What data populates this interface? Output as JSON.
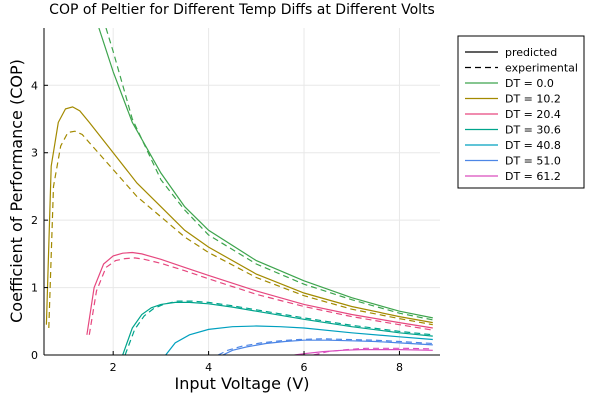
{
  "chart_data": {
    "type": "line",
    "title": "COP of Peltier for Different Temp Diffs at Different Volts",
    "xlabel": "Input Voltage (V)",
    "ylabel": "Coefficient of Performance (COP)",
    "xlim": [
      0.55,
      8.85
    ],
    "ylim": [
      0,
      4.85
    ],
    "xticks": [
      2,
      4,
      6,
      8
    ],
    "yticks": [
      0,
      1,
      2,
      3,
      4
    ],
    "grid": true,
    "legend_position": "top-right outside",
    "legend_entries": [
      {
        "name": "predicted",
        "color": "#000000",
        "style": "solid",
        "bind": "chart_data.legend_entries.0.name"
      },
      {
        "name": "experimental",
        "color": "#000000",
        "style": "dashed",
        "bind": "chart_data.legend_entries.1.name"
      },
      {
        "name": "DT = 0.0",
        "color": "#3da44d",
        "style": "solid",
        "bind": "chart_data.legend_entries.2.name"
      },
      {
        "name": "DT = 10.2",
        "color": "#a38a00",
        "style": "solid",
        "bind": "chart_data.legend_entries.3.name"
      },
      {
        "name": "DT = 20.4",
        "color": "#e6487f",
        "style": "solid",
        "bind": "chart_data.legend_entries.4.name"
      },
      {
        "name": "DT = 30.6",
        "color": "#00a48c",
        "style": "solid",
        "bind": "chart_data.legend_entries.5.name"
      },
      {
        "name": "DT = 40.8",
        "color": "#00a0bf",
        "style": "solid",
        "bind": "chart_data.legend_entries.6.name"
      },
      {
        "name": "DT = 51.0",
        "color": "#4d86e6",
        "style": "solid",
        "bind": "chart_data.legend_entries.7.name"
      },
      {
        "name": "DT = 61.2",
        "color": "#d94dbe",
        "style": "solid",
        "bind": "chart_data.legend_entries.8.name"
      }
    ],
    "series": [
      {
        "name": "DT = 0.0",
        "kind": "predicted",
        "color": "#3da44d",
        "x": [
          1.7,
          2.0,
          2.4,
          3.0,
          3.5,
          4.0,
          5.0,
          6.0,
          7.0,
          8.0,
          8.7
        ],
        "y": [
          4.85,
          4.2,
          3.45,
          2.7,
          2.2,
          1.85,
          1.4,
          1.1,
          0.85,
          0.65,
          0.55
        ]
      },
      {
        "name": "DT = 0.0",
        "kind": "experimental",
        "color": "#3da44d",
        "x": [
          1.85,
          2.0,
          2.4,
          3.0,
          3.5,
          4.0,
          5.0,
          6.0,
          7.0,
          8.0,
          8.7
        ],
        "y": [
          4.85,
          4.5,
          3.5,
          2.6,
          2.15,
          1.78,
          1.35,
          1.05,
          0.82,
          0.62,
          0.52
        ]
      },
      {
        "name": "DT = 10.2",
        "kind": "predicted",
        "color": "#a38a00",
        "x": [
          0.6,
          0.7,
          0.85,
          1.0,
          1.15,
          1.3,
          1.5,
          2.0,
          2.5,
          3.0,
          3.5,
          4.0,
          5.0,
          6.0,
          7.0,
          8.0,
          8.7
        ],
        "y": [
          0.45,
          2.8,
          3.45,
          3.65,
          3.68,
          3.62,
          3.45,
          3.0,
          2.55,
          2.2,
          1.85,
          1.6,
          1.2,
          0.92,
          0.72,
          0.57,
          0.48
        ]
      },
      {
        "name": "DT = 10.2",
        "kind": "experimental",
        "color": "#a38a00",
        "x": [
          0.65,
          0.75,
          0.9,
          1.05,
          1.2,
          1.35,
          1.5,
          2.0,
          2.5,
          3.0,
          3.5,
          4.0,
          5.0,
          6.0,
          7.0,
          8.0,
          8.7
        ],
        "y": [
          0.4,
          2.5,
          3.1,
          3.3,
          3.32,
          3.27,
          3.15,
          2.75,
          2.35,
          2.05,
          1.75,
          1.52,
          1.15,
          0.88,
          0.68,
          0.54,
          0.45
        ]
      },
      {
        "name": "DT = 20.4",
        "kind": "predicted",
        "color": "#e6487f",
        "x": [
          1.45,
          1.6,
          1.8,
          2.0,
          2.2,
          2.4,
          2.6,
          3.0,
          3.5,
          4.0,
          5.0,
          6.0,
          7.0,
          8.0,
          8.7
        ],
        "y": [
          0.3,
          1.0,
          1.35,
          1.47,
          1.51,
          1.52,
          1.5,
          1.42,
          1.3,
          1.18,
          0.95,
          0.75,
          0.6,
          0.48,
          0.4
        ]
      },
      {
        "name": "DT = 20.4",
        "kind": "experimental",
        "color": "#e6487f",
        "x": [
          1.5,
          1.65,
          1.85,
          2.05,
          2.25,
          2.45,
          2.65,
          3.0,
          3.5,
          4.0,
          5.0,
          6.0,
          7.0,
          8.0,
          8.7
        ],
        "y": [
          0.3,
          0.95,
          1.3,
          1.4,
          1.43,
          1.44,
          1.42,
          1.36,
          1.25,
          1.13,
          0.9,
          0.72,
          0.57,
          0.45,
          0.37
        ]
      },
      {
        "name": "DT = 30.6",
        "kind": "predicted",
        "color": "#00a48c",
        "x": [
          2.2,
          2.4,
          2.6,
          2.8,
          3.0,
          3.3,
          3.6,
          4.0,
          4.5,
          5.0,
          6.0,
          7.0,
          8.0,
          8.7
        ],
        "y": [
          0.0,
          0.4,
          0.6,
          0.7,
          0.75,
          0.78,
          0.78,
          0.76,
          0.71,
          0.65,
          0.53,
          0.42,
          0.33,
          0.28
        ]
      },
      {
        "name": "DT = 30.6",
        "kind": "experimental",
        "color": "#00a48c",
        "x": [
          2.25,
          2.45,
          2.65,
          2.85,
          3.05,
          3.35,
          3.65,
          4.0,
          4.5,
          5.0,
          6.0,
          7.0,
          8.0,
          8.7
        ],
        "y": [
          0.0,
          0.38,
          0.58,
          0.69,
          0.75,
          0.8,
          0.8,
          0.78,
          0.73,
          0.67,
          0.55,
          0.44,
          0.35,
          0.3
        ]
      },
      {
        "name": "DT = 40.8",
        "kind": "predicted",
        "color": "#00a0bf",
        "x": [
          3.1,
          3.3,
          3.6,
          4.0,
          4.5,
          5.0,
          5.5,
          6.0,
          7.0,
          8.0,
          8.7
        ],
        "y": [
          0.0,
          0.18,
          0.3,
          0.38,
          0.42,
          0.43,
          0.42,
          0.4,
          0.33,
          0.27,
          0.23
        ]
      },
      {
        "name": "DT = 51.0",
        "kind": "predicted",
        "color": "#4d86e6",
        "x": [
          4.3,
          4.5,
          4.8,
          5.2,
          5.6,
          6.0,
          6.5,
          7.0,
          7.5,
          8.0,
          8.7
        ],
        "y": [
          0.0,
          0.07,
          0.12,
          0.17,
          0.2,
          0.22,
          0.22,
          0.21,
          0.2,
          0.18,
          0.15
        ]
      },
      {
        "name": "DT = 51.0",
        "kind": "experimental",
        "color": "#4d86e6",
        "x": [
          4.2,
          4.4,
          4.7,
          5.1,
          5.5,
          5.9,
          6.4,
          6.9,
          7.5,
          8.0,
          8.7
        ],
        "y": [
          0.0,
          0.07,
          0.13,
          0.18,
          0.21,
          0.23,
          0.24,
          0.23,
          0.22,
          0.2,
          0.17
        ]
      },
      {
        "name": "DT = 61.2",
        "kind": "predicted",
        "color": "#d94dbe",
        "x": [
          5.8,
          6.0,
          6.4,
          6.8,
          7.2,
          7.6,
          8.0,
          8.7
        ],
        "y": [
          0.0,
          0.02,
          0.05,
          0.07,
          0.08,
          0.08,
          0.08,
          0.07
        ]
      },
      {
        "name": "DT = 61.2",
        "kind": "experimental",
        "color": "#d94dbe",
        "x": [
          6.2,
          6.5,
          6.9,
          7.3,
          7.7,
          8.1,
          8.7
        ],
        "y": [
          0.0,
          0.05,
          0.08,
          0.1,
          0.1,
          0.1,
          0.09
        ]
      }
    ]
  }
}
